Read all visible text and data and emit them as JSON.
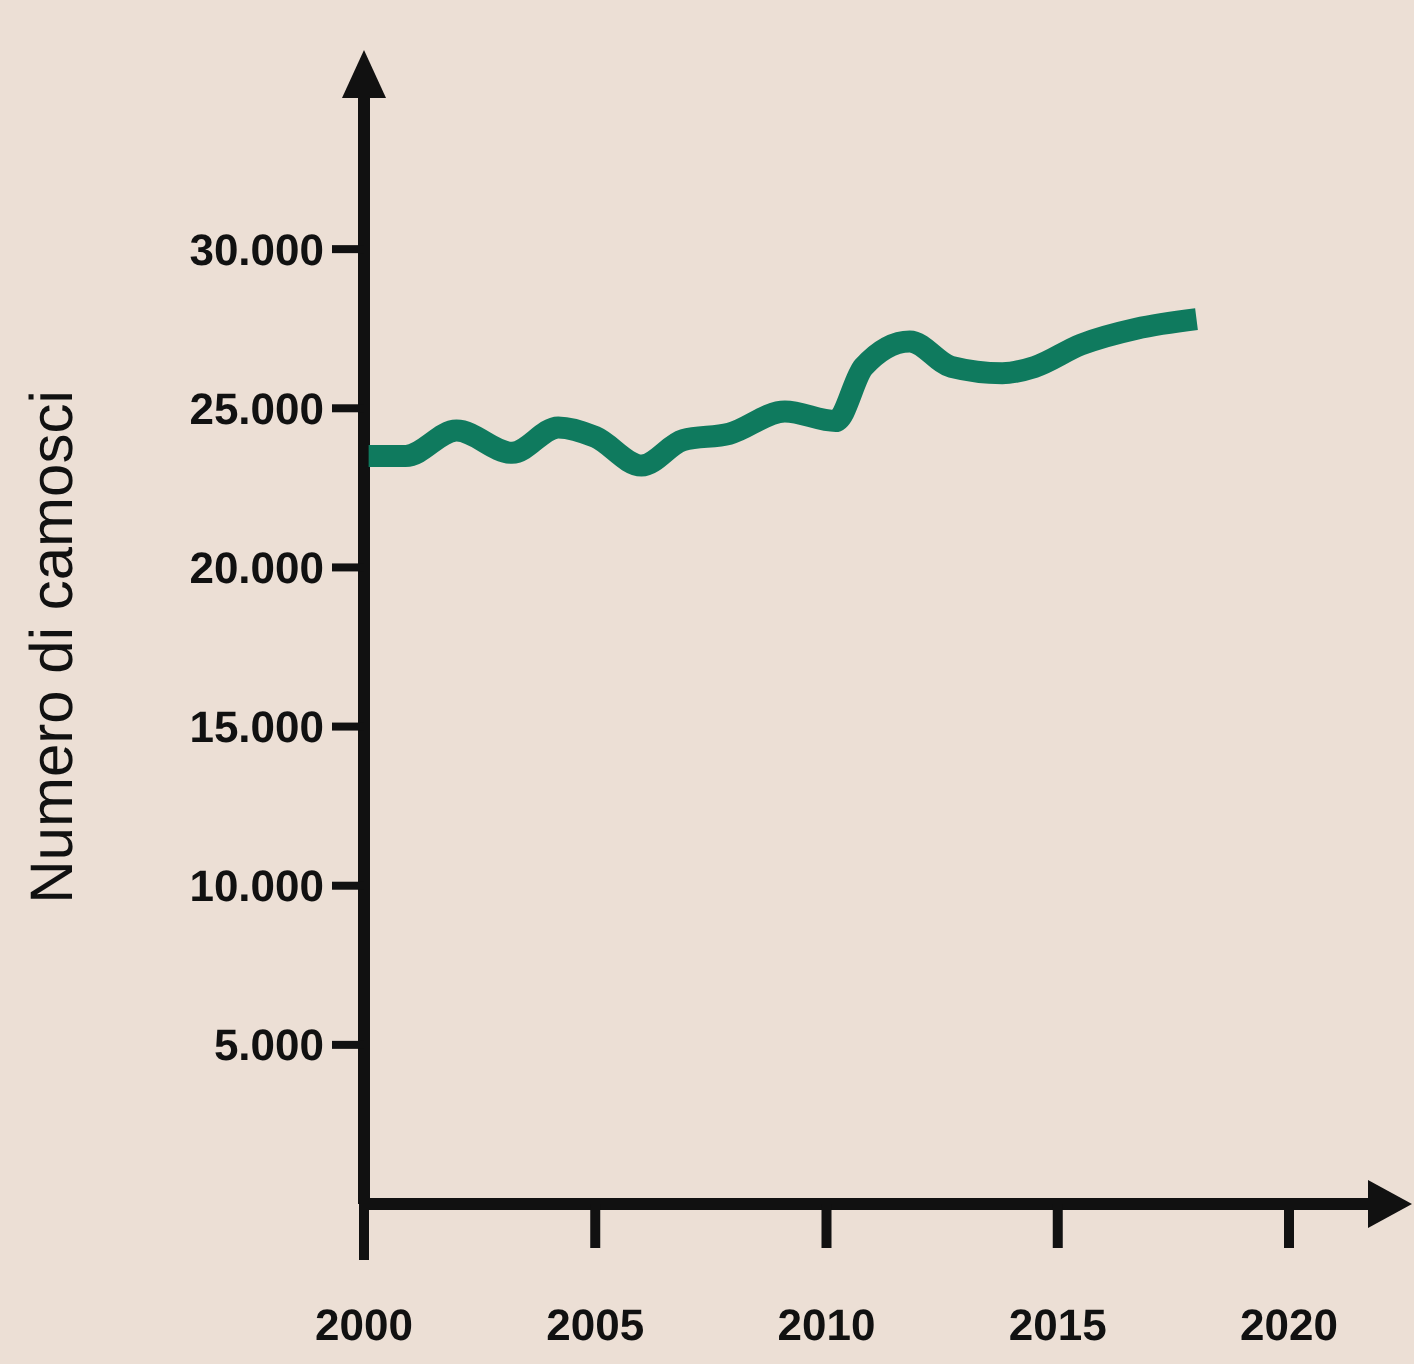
{
  "chart_data": {
    "type": "line",
    "ylabel": "Numero di camosci",
    "x": [
      2000.1,
      2000.9,
      2002.0,
      2003.2,
      2004.2,
      2005.0,
      2006.0,
      2006.9,
      2007.9,
      2009.1,
      2010.2,
      2010.8,
      2011.8,
      2012.7,
      2013.8,
      2014.5,
      2015.5,
      2016.7,
      2018.0
    ],
    "series": [
      {
        "color": "#0f7a5e",
        "values": [
          23500,
          23500,
          24300,
          23600,
          24400,
          24100,
          23200,
          24000,
          24200,
          24900,
          24600,
          26300,
          27100,
          26300,
          26100,
          26300,
          27000,
          27500,
          27800
        ]
      }
    ],
    "xlim": [
      2000,
      2022.4
    ],
    "xticks": [
      2000,
      2005,
      2010,
      2015,
      2020
    ],
    "ylim": [
      0,
      35000
    ],
    "yticks": [
      {
        "value": 5000,
        "label": "5.000"
      },
      {
        "value": 10000,
        "label": "10.000"
      },
      {
        "value": 15000,
        "label": "15.000"
      },
      {
        "value": 20000,
        "label": "20.000"
      },
      {
        "value": 25000,
        "label": "25.000"
      },
      {
        "value": 30000,
        "label": "30.000"
      }
    ],
    "grid": false,
    "line_style": "solid"
  }
}
